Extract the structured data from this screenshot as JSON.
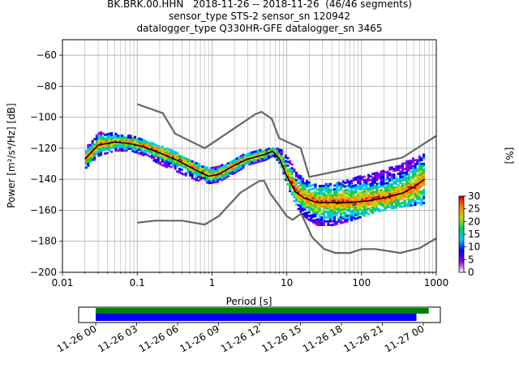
{
  "title": {
    "line1": "BK.BRK.00.HHN   2018-11-26 -- 2018-11-26  (46/46 segments)",
    "line2": "sensor_type STS-2 sensor_sn 120942",
    "line3": "datalogger_type Q330HR-GFE datalogger_sn 3465"
  },
  "colors": {
    "nlnm_nhnm": "#666666",
    "mode_line": "#000000",
    "coverage_data": "#0000ff",
    "coverage_segments": "#008000",
    "grid": "#b0b0b0"
  },
  "chart_data": [
    {
      "type": "heatmap",
      "subtype": "probabilistic-power-spectral-density",
      "xlabel": "Period [s]",
      "ylabel": "Power [m²/s⁴/Hz] [dB]",
      "xscale": "log",
      "xlim": [
        0.01,
        1000
      ],
      "ylim": [
        -200,
        -50
      ],
      "xticks": [
        {
          "value": 0.01,
          "label": "0.01"
        },
        {
          "value": 0.1,
          "label": "0.1"
        },
        {
          "value": 1,
          "label": "1"
        },
        {
          "value": 10,
          "label": "10"
        },
        {
          "value": 100,
          "label": "100"
        },
        {
          "value": 1000,
          "label": "1000"
        }
      ],
      "yticks": [
        -60,
        -80,
        -100,
        -120,
        -140,
        -160,
        -180,
        -200
      ],
      "grid": true,
      "colorbar": {
        "label": "[%]",
        "ticks": [
          0,
          5,
          10,
          15,
          20,
          25,
          30
        ],
        "range": [
          0,
          30
        ],
        "colormap": [
          "#ffffff",
          "#8a00e0",
          "#0000ff",
          "#00c8ff",
          "#00d060",
          "#c8d200",
          "#ff8000",
          "#d00000"
        ]
      },
      "mode_curve": {
        "name": "mode",
        "x": [
          0.02,
          0.03,
          0.05,
          0.08,
          0.12,
          0.2,
          0.35,
          0.6,
          0.9,
          1.2,
          2,
          3,
          5,
          6.5,
          8,
          10,
          13,
          17,
          25,
          40,
          70,
          120,
          200,
          350,
          500,
          700
        ],
        "y": [
          -127,
          -118,
          -116,
          -117,
          -119,
          -123,
          -128,
          -134,
          -138,
          -137,
          -131,
          -127,
          -124,
          -122,
          -127,
          -138,
          -148,
          -152,
          -155,
          -155,
          -155,
          -154,
          -152,
          -149,
          -145,
          -140
        ]
      },
      "spread": {
        "x": [
          0.02,
          0.03,
          0.05,
          0.08,
          0.12,
          0.2,
          0.35,
          0.6,
          0.9,
          1.2,
          2,
          3,
          5,
          6.5,
          8,
          10,
          13,
          17,
          25,
          40,
          70,
          120,
          200,
          350,
          500,
          700
        ],
        "y_top": [
          -120,
          -110,
          -111,
          -112,
          -115,
          -119,
          -124,
          -130,
          -133,
          -132,
          -127,
          -123,
          -121,
          -120,
          -121,
          -126,
          -136,
          -141,
          -144,
          -143,
          -140,
          -137,
          -134,
          -130,
          -126,
          -123
        ],
        "y_bottom": [
          -133,
          -125,
          -122,
          -122,
          -125,
          -131,
          -136,
          -141,
          -143,
          -142,
          -136,
          -131,
          -128,
          -125,
          -131,
          -145,
          -158,
          -165,
          -170,
          -170,
          -167,
          -163,
          -160,
          -158,
          -157,
          -157
        ]
      },
      "noise_models": [
        {
          "name": "NHNM",
          "x": [
            0.1,
            0.22,
            0.32,
            0.8,
            3.8,
            4.6,
            6.3,
            7.9,
            15.4,
            20,
            354.8,
            1000
          ],
          "y": [
            -91.5,
            -97.4,
            -110.5,
            -120,
            -98,
            -96.5,
            -101,
            -113.5,
            -120,
            -138.5,
            -126,
            -112
          ]
        },
        {
          "name": "NLNM",
          "x": [
            0.1,
            0.17,
            0.4,
            0.8,
            1.24,
            2.4,
            4.3,
            5.0,
            6.0,
            10,
            12,
            15.6,
            21.9,
            31.6,
            45,
            70,
            101,
            154,
            328,
            600,
            1000
          ],
          "y": [
            -168,
            -166.7,
            -166.7,
            -169.2,
            -163.7,
            -148.6,
            -141.1,
            -141.1,
            -149,
            -163.8,
            -166.2,
            -162.1,
            -177.5,
            -185,
            -187.5,
            -187.5,
            -185,
            -185,
            -187.5,
            -184.4,
            -178
          ]
        }
      ]
    },
    {
      "type": "bar",
      "subtype": "data-coverage-timeline",
      "xticks": [
        "11-26 00",
        "11-26 03",
        "11-26 06",
        "11-26 09",
        "11-26 12",
        "11-26 15",
        "11-26 18",
        "11-26 21",
        "11-27 00"
      ],
      "x_start_hours": -1.25,
      "x_end_hours": 25.25,
      "bars": [
        {
          "name": "segments",
          "start_hours": 0,
          "end_hours": 24.4,
          "color": "#008000"
        },
        {
          "name": "data",
          "start_hours": 0,
          "end_hours": 23.5,
          "color": "#0000ff"
        }
      ]
    }
  ]
}
